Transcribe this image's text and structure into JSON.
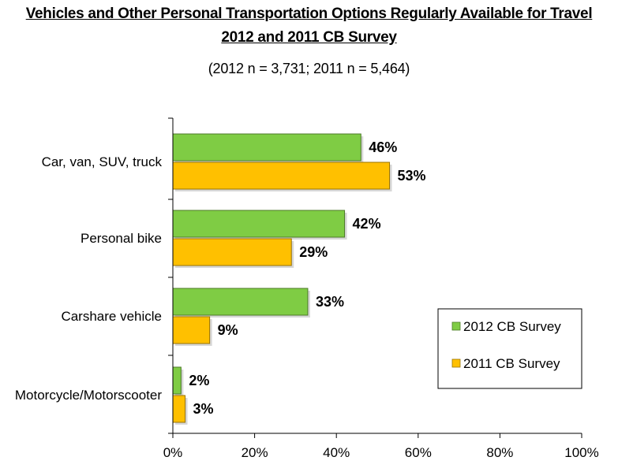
{
  "title_line1": "Vehicles and Other Personal Transportation Options Regularly Available for Travel",
  "title_line2": "2012 and 2011 CB Survey",
  "subtitle": "(2012 n = 3,731; 2011 n = 5,464)",
  "colors": {
    "series_2012": "#7fcc44",
    "series_2011": "#ffc000"
  },
  "chart_data": {
    "type": "bar",
    "orientation": "horizontal",
    "categories": [
      "Car, van, SUV, truck",
      "Personal bike",
      "Carshare vehicle",
      "Motorcycle/Motorscooter"
    ],
    "series": [
      {
        "name": "2012 CB Survey",
        "values": [
          46,
          42,
          33,
          2
        ],
        "labels": [
          "46%",
          "42%",
          "33%",
          "2%"
        ],
        "color": "#7fcc44"
      },
      {
        "name": "2011 CB Survey",
        "values": [
          53,
          29,
          9,
          3
        ],
        "labels": [
          "53%",
          "29%",
          "9%",
          "3%"
        ],
        "color": "#ffc000"
      }
    ],
    "xlim": [
      0,
      100
    ],
    "xticks": [
      "0%",
      "20%",
      "40%",
      "60%",
      "80%",
      "100%"
    ],
    "xlabel": "",
    "ylabel": "",
    "grid": false,
    "legend_position": "right"
  }
}
